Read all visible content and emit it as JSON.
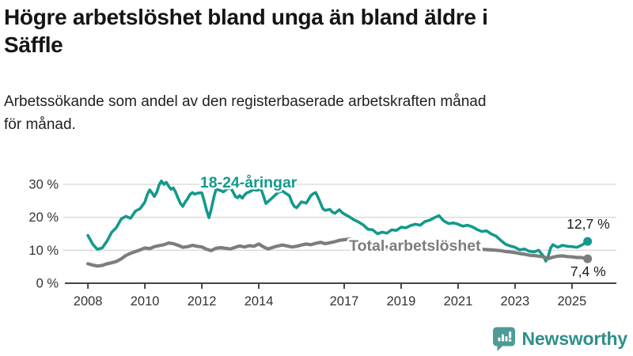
{
  "header": {
    "title_lines": [
      "Högre arbetslöshet bland unga än bland äldre i",
      "Säffle"
    ],
    "subtitle_lines": [
      "Arbetssökande som andel av den registerbaserade arbetskraften månad",
      "för månad."
    ]
  },
  "logo": {
    "text": "Newsworthy",
    "icon": "bar-chart-speech-bubble-icon",
    "color": "#2E8F8B",
    "icon_color": "#4E9B97"
  },
  "chart_data": {
    "type": "line",
    "title": "Högre arbetslöshet bland unga än bland äldre i Säffle",
    "subtitle": "Arbetssökande som andel av den registerbaserade arbetskraften månad för månad.",
    "x_axis": {
      "range": [
        2007.19,
        2026.56
      ],
      "ticks": [
        2008,
        2010,
        2012,
        2014,
        2017,
        2019,
        2021,
        2023,
        2025
      ],
      "grid": false
    },
    "y_axis": {
      "range": [
        0,
        30
      ],
      "ticks": [
        0,
        10,
        20,
        30
      ],
      "tick_suffix": " %",
      "grid": true
    },
    "colors": {
      "grid": "#D8D8D8",
      "axis": "#444444",
      "tick_label": "#333333",
      "value_label": "#1A1A1A"
    },
    "legend_position": "inline-labels",
    "series": [
      {
        "name": "18-24-åringar",
        "color": "#13998B",
        "stroke_width": 3.6,
        "end_label": "12,7 %",
        "end_value": 12.7,
        "label_anchor": {
          "year": 2011.94,
          "value": 29.0
        },
        "end_label_offset": {
          "dx": 28,
          "dy": -16
        },
        "points": [
          [
            2008.0,
            14.5
          ],
          [
            2008.17,
            11.8
          ],
          [
            2008.33,
            10.3
          ],
          [
            2008.5,
            10.7
          ],
          [
            2008.67,
            12.8
          ],
          [
            2008.83,
            15.4
          ],
          [
            2009.0,
            16.9
          ],
          [
            2009.17,
            19.5
          ],
          [
            2009.33,
            20.3
          ],
          [
            2009.5,
            19.7
          ],
          [
            2009.67,
            21.9
          ],
          [
            2009.83,
            22.6
          ],
          [
            2010.0,
            24.6
          ],
          [
            2010.08,
            26.8
          ],
          [
            2010.17,
            28.3
          ],
          [
            2010.25,
            27.4
          ],
          [
            2010.33,
            26.3
          ],
          [
            2010.42,
            27.6
          ],
          [
            2010.5,
            29.8
          ],
          [
            2010.58,
            31.0
          ],
          [
            2010.67,
            30.0
          ],
          [
            2010.75,
            30.6
          ],
          [
            2010.83,
            29.5
          ],
          [
            2010.92,
            28.5
          ],
          [
            2011.0,
            28.9
          ],
          [
            2011.08,
            27.6
          ],
          [
            2011.17,
            25.7
          ],
          [
            2011.25,
            24.2
          ],
          [
            2011.33,
            23.3
          ],
          [
            2011.42,
            24.7
          ],
          [
            2011.5,
            25.6
          ],
          [
            2011.58,
            26.9
          ],
          [
            2011.67,
            27.5
          ],
          [
            2011.75,
            27.0
          ],
          [
            2011.83,
            27.3
          ],
          [
            2011.92,
            27.4
          ],
          [
            2012.0,
            27.4
          ],
          [
            2012.08,
            25.0
          ],
          [
            2012.17,
            22.0
          ],
          [
            2012.25,
            19.9
          ],
          [
            2012.33,
            22.5
          ],
          [
            2012.42,
            26.0
          ],
          [
            2012.5,
            28.6
          ],
          [
            2012.58,
            28.3
          ],
          [
            2012.67,
            28.1
          ],
          [
            2012.75,
            27.7
          ],
          [
            2012.83,
            28.2
          ],
          [
            2012.92,
            28.7
          ],
          [
            2013.0,
            28.8
          ],
          [
            2013.08,
            28.0
          ],
          [
            2013.17,
            26.4
          ],
          [
            2013.25,
            25.9
          ],
          [
            2013.33,
            26.6
          ],
          [
            2013.42,
            25.8
          ],
          [
            2013.5,
            26.8
          ],
          [
            2013.58,
            27.4
          ],
          [
            2013.67,
            27.7
          ],
          [
            2013.75,
            28.1
          ],
          [
            2013.83,
            28.4
          ],
          [
            2013.92,
            28.2
          ],
          [
            2014.0,
            28.3
          ],
          [
            2014.08,
            28.6
          ],
          [
            2014.17,
            26.3
          ],
          [
            2014.25,
            24.2
          ],
          [
            2014.33,
            24.8
          ],
          [
            2014.5,
            26.1
          ],
          [
            2014.67,
            27.5
          ],
          [
            2014.83,
            28.0
          ],
          [
            2014.92,
            27.4
          ],
          [
            2015.0,
            27.0
          ],
          [
            2015.08,
            26.5
          ],
          [
            2015.17,
            24.4
          ],
          [
            2015.25,
            23.3
          ],
          [
            2015.33,
            22.9
          ],
          [
            2015.5,
            24.7
          ],
          [
            2015.67,
            24.3
          ],
          [
            2015.83,
            26.6
          ],
          [
            2015.92,
            27.2
          ],
          [
            2016.0,
            27.5
          ],
          [
            2016.08,
            26.1
          ],
          [
            2016.17,
            24.3
          ],
          [
            2016.25,
            22.6
          ],
          [
            2016.33,
            22.1
          ],
          [
            2016.5,
            22.4
          ],
          [
            2016.58,
            21.6
          ],
          [
            2016.67,
            21.2
          ],
          [
            2016.83,
            22.3
          ],
          [
            2016.92,
            21.5
          ],
          [
            2017.0,
            21.0
          ],
          [
            2017.17,
            20.2
          ],
          [
            2017.33,
            19.3
          ],
          [
            2017.5,
            18.6
          ],
          [
            2017.67,
            17.7
          ],
          [
            2017.83,
            16.4
          ],
          [
            2018.0,
            16.2
          ],
          [
            2018.17,
            15.0
          ],
          [
            2018.33,
            15.5
          ],
          [
            2018.5,
            15.2
          ],
          [
            2018.67,
            16.2
          ],
          [
            2018.83,
            16.0
          ],
          [
            2019.0,
            17.0
          ],
          [
            2019.17,
            16.8
          ],
          [
            2019.33,
            17.5
          ],
          [
            2019.5,
            17.9
          ],
          [
            2019.67,
            17.6
          ],
          [
            2019.83,
            18.7
          ],
          [
            2020.0,
            19.1
          ],
          [
            2020.17,
            19.9
          ],
          [
            2020.33,
            20.5
          ],
          [
            2020.5,
            18.9
          ],
          [
            2020.67,
            18.1
          ],
          [
            2020.83,
            18.3
          ],
          [
            2021.0,
            17.9
          ],
          [
            2021.17,
            17.3
          ],
          [
            2021.33,
            17.6
          ],
          [
            2021.5,
            17.1
          ],
          [
            2021.67,
            16.3
          ],
          [
            2021.83,
            15.7
          ],
          [
            2022.0,
            15.9
          ],
          [
            2022.17,
            14.9
          ],
          [
            2022.33,
            14.3
          ],
          [
            2022.5,
            13.0
          ],
          [
            2022.67,
            11.8
          ],
          [
            2022.83,
            11.3
          ],
          [
            2023.0,
            10.9
          ],
          [
            2023.17,
            10.1
          ],
          [
            2023.33,
            10.4
          ],
          [
            2023.5,
            9.7
          ],
          [
            2023.67,
            9.5
          ],
          [
            2023.83,
            10.0
          ],
          [
            2023.92,
            9.0
          ],
          [
            2024.0,
            8.2
          ],
          [
            2024.08,
            6.7
          ],
          [
            2024.17,
            8.3
          ],
          [
            2024.25,
            10.7
          ],
          [
            2024.33,
            11.7
          ],
          [
            2024.5,
            10.9
          ],
          [
            2024.67,
            11.5
          ],
          [
            2024.83,
            11.2
          ],
          [
            2025.0,
            11.1
          ],
          [
            2025.17,
            10.9
          ],
          [
            2025.33,
            11.5
          ],
          [
            2025.5,
            12.4
          ],
          [
            2025.55,
            12.7
          ]
        ]
      },
      {
        "name": "Total arbetslöshet",
        "color": "#7D7D7D",
        "stroke_width": 4.2,
        "end_label": "7,4 %",
        "end_value": 7.4,
        "label_anchor": {
          "year": 2017.17,
          "value": 9.85
        },
        "end_label_offset": {
          "dx": 23,
          "dy": 22
        },
        "points": [
          [
            2008.0,
            5.9
          ],
          [
            2008.17,
            5.5
          ],
          [
            2008.33,
            5.2
          ],
          [
            2008.5,
            5.4
          ],
          [
            2008.67,
            5.9
          ],
          [
            2008.83,
            6.2
          ],
          [
            2009.0,
            6.6
          ],
          [
            2009.17,
            7.4
          ],
          [
            2009.33,
            8.4
          ],
          [
            2009.5,
            9.1
          ],
          [
            2009.67,
            9.6
          ],
          [
            2009.83,
            10.1
          ],
          [
            2010.0,
            10.7
          ],
          [
            2010.17,
            10.5
          ],
          [
            2010.33,
            11.1
          ],
          [
            2010.5,
            11.4
          ],
          [
            2010.67,
            11.7
          ],
          [
            2010.83,
            12.2
          ],
          [
            2011.0,
            12.0
          ],
          [
            2011.17,
            11.5
          ],
          [
            2011.33,
            10.9
          ],
          [
            2011.5,
            11.1
          ],
          [
            2011.67,
            11.5
          ],
          [
            2011.83,
            11.2
          ],
          [
            2012.0,
            11.0
          ],
          [
            2012.17,
            10.3
          ],
          [
            2012.33,
            9.9
          ],
          [
            2012.5,
            10.6
          ],
          [
            2012.67,
            10.8
          ],
          [
            2012.83,
            10.6
          ],
          [
            2013.0,
            10.4
          ],
          [
            2013.17,
            10.9
          ],
          [
            2013.33,
            11.3
          ],
          [
            2013.5,
            11.0
          ],
          [
            2013.67,
            11.4
          ],
          [
            2013.83,
            11.2
          ],
          [
            2014.0,
            11.9
          ],
          [
            2014.17,
            11.0
          ],
          [
            2014.33,
            10.4
          ],
          [
            2014.5,
            10.9
          ],
          [
            2014.67,
            11.3
          ],
          [
            2014.83,
            11.6
          ],
          [
            2015.0,
            11.3
          ],
          [
            2015.17,
            11.0
          ],
          [
            2015.33,
            11.2
          ],
          [
            2015.5,
            11.6
          ],
          [
            2015.67,
            11.9
          ],
          [
            2015.83,
            11.7
          ],
          [
            2016.0,
            12.1
          ],
          [
            2016.17,
            12.4
          ],
          [
            2016.33,
            12.0
          ],
          [
            2016.5,
            12.3
          ],
          [
            2016.67,
            12.6
          ],
          [
            2016.83,
            13.0
          ],
          [
            2017.0,
            13.2
          ],
          [
            2017.17,
            13.4
          ],
          [
            2017.33,
            13.0
          ],
          [
            2017.5,
            12.6
          ],
          [
            2017.67,
            12.2
          ],
          [
            2017.83,
            11.8
          ],
          [
            2018.0,
            11.6
          ],
          [
            2018.17,
            11.3
          ],
          [
            2018.33,
            11.1
          ],
          [
            2018.5,
            11.0
          ],
          [
            2018.67,
            11.2
          ],
          [
            2018.83,
            11.0
          ],
          [
            2019.0,
            10.8
          ],
          [
            2019.17,
            10.9
          ],
          [
            2019.33,
            11.1
          ],
          [
            2019.5,
            11.0
          ],
          [
            2019.67,
            11.2
          ],
          [
            2019.83,
            11.4
          ],
          [
            2020.0,
            11.6
          ],
          [
            2020.17,
            12.1
          ],
          [
            2020.33,
            12.6
          ],
          [
            2020.5,
            12.4
          ],
          [
            2020.67,
            12.2
          ],
          [
            2020.83,
            12.0
          ],
          [
            2021.0,
            11.8
          ],
          [
            2021.17,
            11.5
          ],
          [
            2021.33,
            11.2
          ],
          [
            2021.5,
            10.9
          ],
          [
            2021.67,
            10.6
          ],
          [
            2021.83,
            10.3
          ],
          [
            2022.0,
            10.2
          ],
          [
            2022.17,
            10.1
          ],
          [
            2022.33,
            10.0
          ],
          [
            2022.5,
            9.9
          ],
          [
            2022.67,
            9.6
          ],
          [
            2022.83,
            9.5
          ],
          [
            2023.0,
            9.3
          ],
          [
            2023.17,
            9.0
          ],
          [
            2023.33,
            8.8
          ],
          [
            2023.5,
            8.5
          ],
          [
            2023.67,
            8.4
          ],
          [
            2023.83,
            8.2
          ],
          [
            2024.0,
            8.0
          ],
          [
            2024.17,
            7.5
          ],
          [
            2024.33,
            7.9
          ],
          [
            2024.5,
            8.2
          ],
          [
            2024.67,
            8.3
          ],
          [
            2024.83,
            8.1
          ],
          [
            2025.0,
            8.0
          ],
          [
            2025.17,
            7.8
          ],
          [
            2025.33,
            7.8
          ],
          [
            2025.5,
            7.5
          ],
          [
            2025.55,
            7.4
          ]
        ]
      }
    ]
  }
}
